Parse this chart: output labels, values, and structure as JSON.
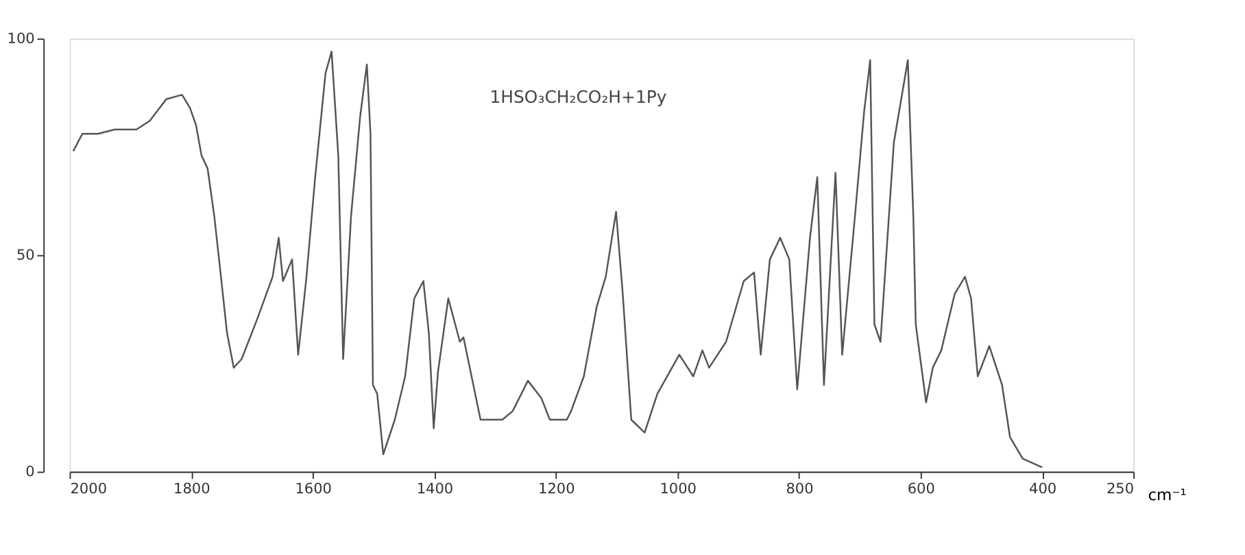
{
  "chart_data": {
    "type": "line",
    "xlabel": "cm⁻¹",
    "annotations": [
      "1HSO₃CH₂CO₂H+1Py"
    ],
    "x": [
      1994,
      1979,
      1953,
      1926,
      1890,
      1868,
      1841,
      1815,
      1802,
      1792,
      1783,
      1773,
      1762,
      1751,
      1741,
      1730,
      1717,
      1692,
      1666,
      1656,
      1649,
      1634,
      1624,
      1611,
      1596,
      1579,
      1569,
      1558,
      1550,
      1537,
      1522,
      1511,
      1505,
      1501,
      1494,
      1484,
      1465,
      1448,
      1433,
      1418,
      1409,
      1401,
      1394,
      1377,
      1358,
      1352,
      1324,
      1288,
      1271,
      1246,
      1224,
      1210,
      1182,
      1175,
      1154,
      1133,
      1118,
      1101,
      1090,
      1076,
      1054,
      1033,
      997,
      974,
      959,
      948,
      920,
      891,
      874,
      863,
      848,
      831,
      816,
      803,
      782,
      770,
      759,
      740,
      729,
      708,
      693,
      683,
      676,
      666,
      644,
      621,
      612,
      608,
      591,
      580,
      566,
      544,
      527,
      517,
      506,
      487,
      466,
      453,
      432,
      400
    ],
    "series": [
      {
        "color": "#555555",
        "values": [
          74,
          78,
          78,
          79,
          79,
          81,
          86,
          87,
          84,
          80,
          73,
          70,
          59,
          45,
          32,
          24,
          26,
          35,
          45,
          54,
          44,
          49,
          27,
          44,
          68,
          92,
          97,
          73,
          26,
          59,
          82,
          94,
          78,
          20,
          18,
          4,
          12,
          22,
          40,
          44,
          32,
          10,
          23,
          40,
          30,
          31,
          12,
          12,
          14,
          21,
          17,
          12,
          12,
          14,
          22,
          38,
          45,
          60,
          41,
          12,
          9,
          18,
          27,
          22,
          28,
          24,
          30,
          44,
          46,
          27,
          49,
          54,
          49,
          19,
          54,
          68,
          20,
          69,
          27,
          59,
          83,
          95,
          34,
          30,
          76,
          95,
          59,
          34,
          16,
          24,
          28,
          41,
          45,
          40,
          22,
          29,
          20,
          8,
          3,
          1
        ]
      }
    ],
    "xlim": [
      2000,
      250
    ],
    "xticks": [
      2000,
      1800,
      1600,
      1400,
      1200,
      1000,
      800,
      600,
      400,
      250
    ],
    "ylim": [
      0,
      100
    ],
    "yticks": [
      0,
      50,
      100
    ],
    "grid": false,
    "line_style": "solid",
    "marker": "none"
  }
}
